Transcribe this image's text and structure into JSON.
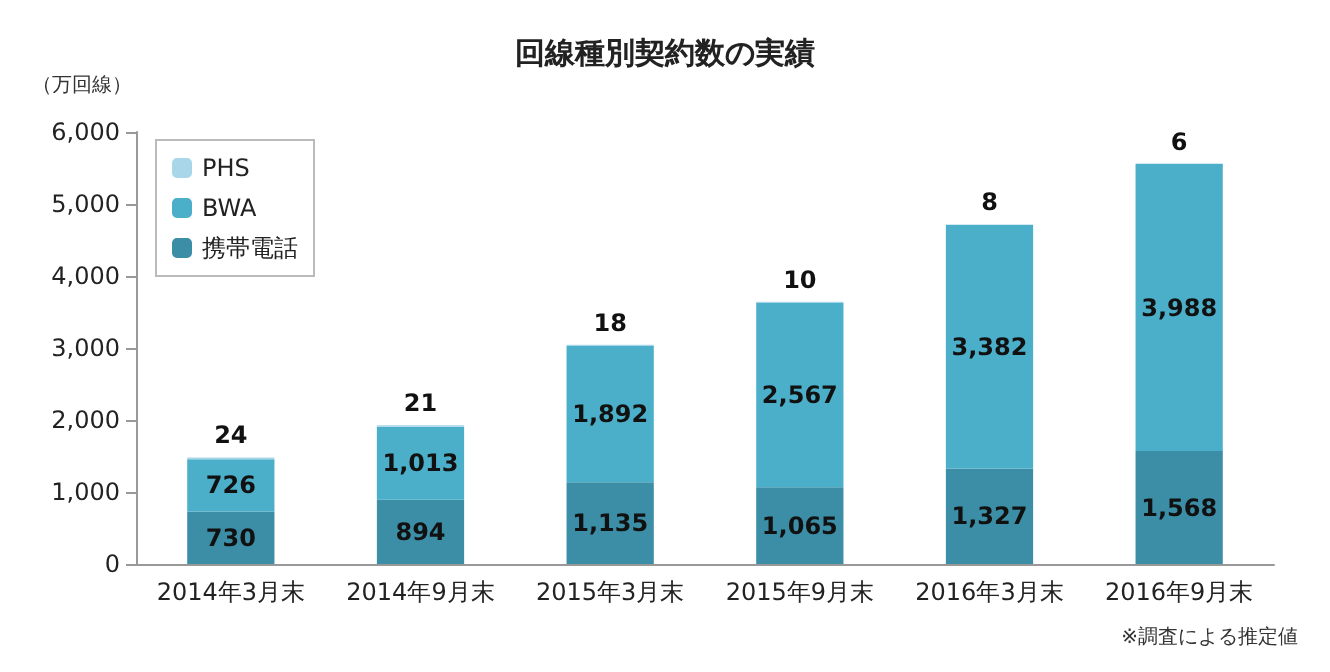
{
  "chart_data": {
    "type": "bar",
    "title": "回線種別契約数の実績",
    "ylabel": "（万回線）",
    "annotations": [
      "※調査による推定値"
    ],
    "categories": [
      "2014年3月末",
      "2014年9月末",
      "2015年3月末",
      "2015年9月末",
      "2016年3月末",
      "2016年9月末"
    ],
    "stacked": true,
    "series": [
      {
        "name": "携帯電話",
        "color": "#3b8ea6",
        "values": [
          730,
          894,
          1135,
          1065,
          1327,
          1568
        ],
        "value_labels": [
          "730",
          "894",
          "1,135",
          "1,065",
          "1,327",
          "1,568"
        ]
      },
      {
        "name": "BWA",
        "color": "#4bafc9",
        "values": [
          726,
          1013,
          1892,
          2567,
          3382,
          3988
        ],
        "value_labels": [
          "726",
          "1,013",
          "1,892",
          "2,567",
          "3,382",
          "3,988"
        ]
      },
      {
        "name": "PHS",
        "color": "#a9d6e8",
        "values": [
          24,
          21,
          18,
          10,
          8,
          6
        ],
        "value_labels": [
          "24",
          "21",
          "18",
          "10",
          "8",
          "6"
        ]
      }
    ],
    "ylim": [
      0,
      6000
    ],
    "yticks": [
      0,
      {
        "value": 1000,
        "label": "1,000"
      },
      {
        "value": 2000,
        "label": "2,000"
      },
      {
        "value": 3000,
        "label": "3,000"
      },
      {
        "value": 4000,
        "label": "4,000"
      },
      {
        "value": 5000,
        "label": "5,000"
      },
      {
        "value": 6000,
        "label": "6,000"
      }
    ],
    "grid": false,
    "legend": "top left"
  }
}
